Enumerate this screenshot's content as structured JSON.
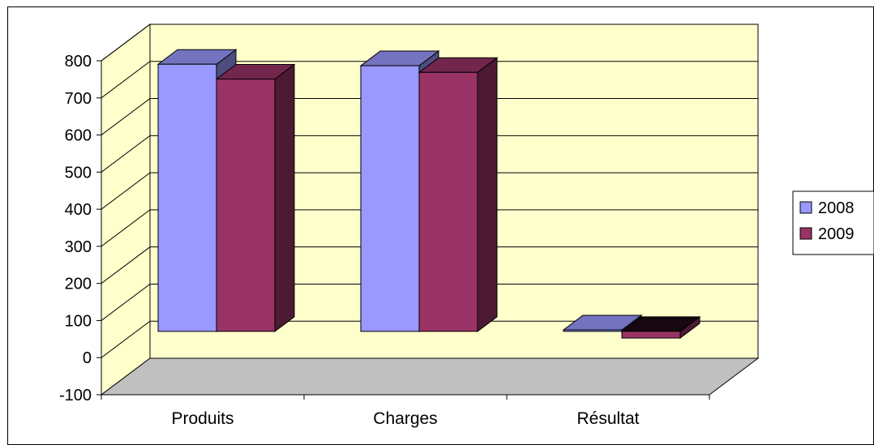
{
  "chart_data": {
    "type": "bar",
    "categories": [
      "Produits",
      "Charges",
      "Résultat"
    ],
    "series": [
      {
        "name": "2008",
        "values": [
          720,
          716,
          4
        ],
        "color": "#9999FF"
      },
      {
        "name": "2009",
        "values": [
          680,
          698,
          -18
        ],
        "color": "#993366"
      }
    ],
    "ylim": [
      -100,
      800
    ],
    "yticks": [
      -100,
      0,
      100,
      200,
      300,
      400,
      500,
      600,
      700,
      800
    ],
    "grid": true,
    "legend_position": "right",
    "wall_color": "#FFFFCC",
    "floor_color": "#C0C0C0"
  }
}
